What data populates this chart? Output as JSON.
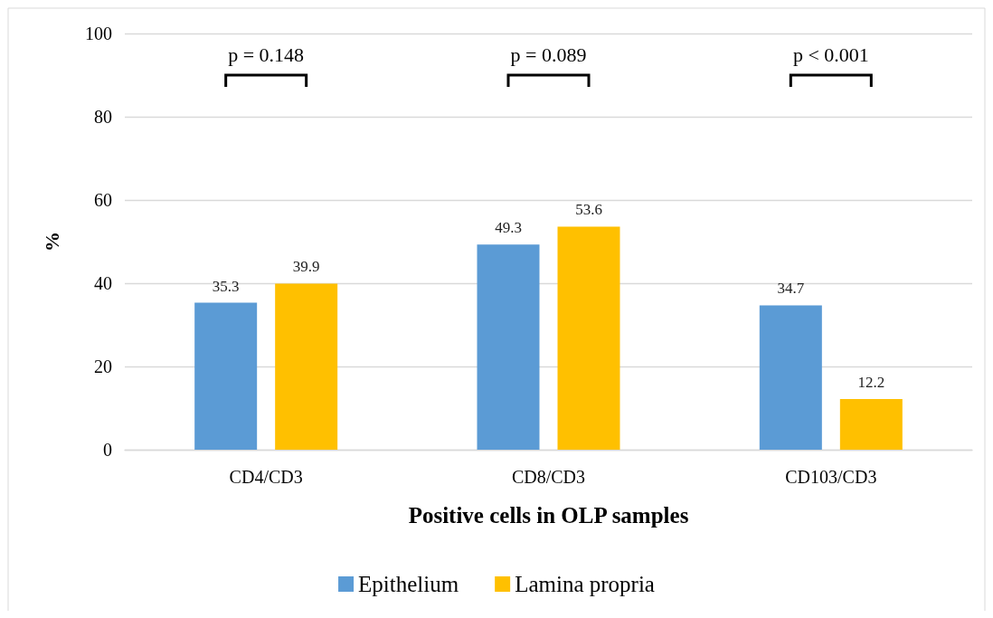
{
  "chart_data": {
    "type": "bar",
    "xlabel": "Positive cells in OLP samples",
    "ylabel": "%",
    "categories": [
      "CD4/CD3",
      "CD8/CD3",
      "CD103/CD3"
    ],
    "series": [
      {
        "name": "Epithelium",
        "color": "#5b9bd5",
        "values": [
          35.3,
          49.3,
          34.7
        ]
      },
      {
        "name": "Lamina propria",
        "color": "#ffc000",
        "values": [
          39.9,
          53.6,
          12.2
        ]
      }
    ],
    "ylim": [
      0,
      100
    ],
    "yticks": [
      0,
      20,
      40,
      60,
      80,
      100
    ],
    "grid": "y",
    "legend": "bottom",
    "data_labels": true,
    "annotations": [
      "p = 0.148",
      "p = 0.089",
      "p < 0.001"
    ]
  }
}
